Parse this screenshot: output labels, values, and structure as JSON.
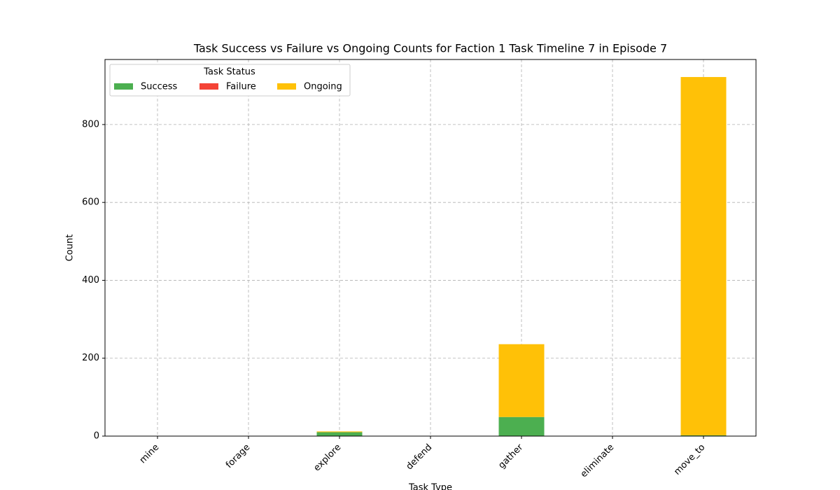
{
  "chart_data": {
    "type": "bar",
    "stacked": true,
    "title": "Task Success vs Failure vs Ongoing Counts for Faction 1 Task Timeline 7 in Episode 7",
    "xlabel": "Task Type",
    "ylabel": "Count",
    "categories": [
      "mine",
      "forage",
      "explore",
      "defend",
      "gather",
      "eliminate",
      "move_to"
    ],
    "series": [
      {
        "name": "Success",
        "color": "#4caf50",
        "values": [
          0,
          0,
          10,
          0,
          49,
          0,
          2
        ]
      },
      {
        "name": "Failure",
        "color": "#f44336",
        "values": [
          0,
          0,
          0,
          0,
          0,
          0,
          0
        ]
      },
      {
        "name": "Ongoing",
        "color": "#ffc107",
        "values": [
          0,
          0,
          2,
          0,
          187,
          0,
          920
        ]
      }
    ],
    "ylim": [
      0,
      967
    ],
    "yticks": [
      0,
      200,
      400,
      600,
      800
    ],
    "grid": true,
    "legend_title": "Task Status",
    "legend_position": "upper left"
  }
}
